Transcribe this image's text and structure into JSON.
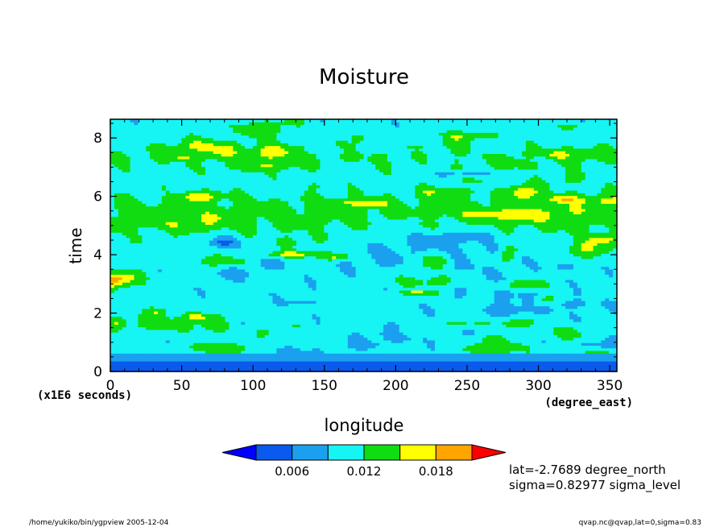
{
  "chart_data": {
    "type": "heatmap",
    "title": "Moisture",
    "xlabel": "longitude",
    "ylabel": "time",
    "x_unit": "(degree_east)",
    "y_unit": "(x1E6 seconds)",
    "xlim": [
      0,
      355
    ],
    "ylim": [
      0,
      8.64
    ],
    "x_ticks": [
      0,
      50,
      100,
      150,
      200,
      250,
      300,
      350
    ],
    "y_ticks": [
      0,
      2,
      4,
      6,
      8
    ],
    "colorbar": {
      "levels": [
        0.003,
        0.006,
        0.009,
        0.012,
        0.015,
        0.018,
        0.021
      ],
      "colors": [
        "#0000ff",
        "#0a5aed",
        "#1aa0ee",
        "#16f4f4",
        "#10dc12",
        "#ffff00",
        "#ffa500",
        "#ff0000"
      ],
      "tick_labels": [
        "0.006",
        "0.012",
        "0.018"
      ]
    },
    "annotations": [
      "lat=-2.7689 degree_north",
      "sigma=0.82977 sigma_level"
    ]
  },
  "footer": {
    "left": "/home/yukiko/bin/ygpview  2005-12-04",
    "right": "qvap.nc@qvap,lat=0,sigma=0.83"
  }
}
